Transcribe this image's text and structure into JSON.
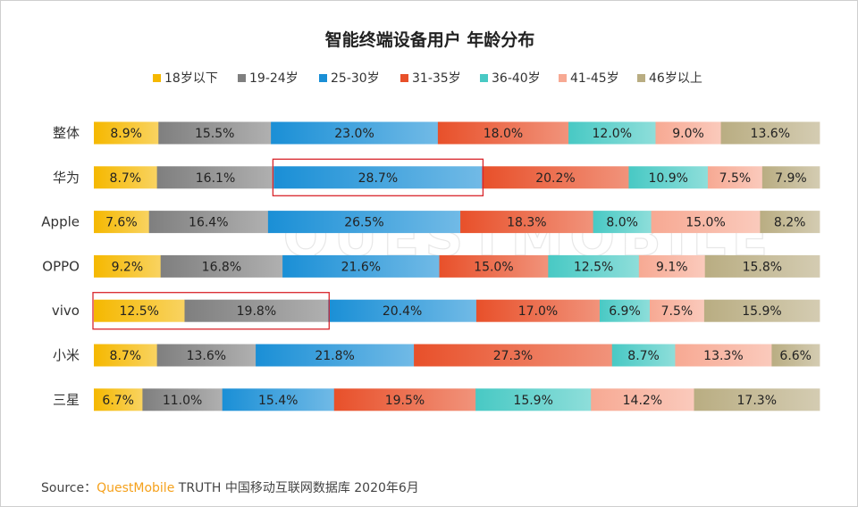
{
  "chart_data": {
    "type": "bar",
    "orientation": "horizontal",
    "stacked": true,
    "percent": true,
    "title": "智能终端设备用户 年龄分布",
    "legend_position": "top",
    "categories": [
      "整体",
      "华为",
      "Apple",
      "OPPO",
      "vivo",
      "小米",
      "三星"
    ],
    "series": [
      {
        "name": "18岁以下",
        "color": "#f5b800",
        "values": [
          8.9,
          8.7,
          7.6,
          9.2,
          12.5,
          8.7,
          6.7
        ]
      },
      {
        "name": "19-24岁",
        "color": "#7f7f7f",
        "values": [
          15.5,
          16.1,
          16.4,
          16.8,
          19.8,
          13.6,
          11.0
        ]
      },
      {
        "name": "25-30岁",
        "color": "#1a8fd6",
        "values": [
          23.0,
          28.7,
          26.5,
          21.6,
          20.4,
          21.8,
          15.4
        ]
      },
      {
        "name": "31-35岁",
        "color": "#e8502a",
        "values": [
          18.0,
          20.2,
          18.3,
          15.0,
          17.0,
          27.3,
          19.5
        ]
      },
      {
        "name": "36-40岁",
        "color": "#48c9c4",
        "values": [
          12.0,
          10.9,
          8.0,
          12.5,
          6.9,
          8.7,
          15.9
        ]
      },
      {
        "name": "41-45岁",
        "color": "#f7a993",
        "values": [
          9.0,
          7.5,
          15.0,
          9.1,
          7.5,
          13.3,
          14.2
        ]
      },
      {
        "name": "46岁以上",
        "color": "#b9ad82",
        "values": [
          13.6,
          7.9,
          8.2,
          15.8,
          15.9,
          6.6,
          17.3
        ]
      }
    ],
    "value_labels": [
      [
        "8.9%",
        "15.5%",
        "23.0%",
        "18.0%",
        "12.0%",
        "9.0%",
        "13.6%"
      ],
      [
        "8.7%",
        "16.1%",
        "28.7%",
        "20.2%",
        "10.9%",
        "7.5%",
        "7.9%"
      ],
      [
        "7.6%",
        "16.4%",
        "26.5%",
        "18.3%",
        "8.0%",
        "15.0%",
        "8.2%"
      ],
      [
        "9.2%",
        "16.8%",
        "21.6%",
        "15.0%",
        "12.5%",
        "9.1%",
        "15.8%"
      ],
      [
        "12.5%",
        "19.8%",
        "20.4%",
        "17.0%",
        "6.9%",
        "7.5%",
        "15.9%"
      ],
      [
        "8.7%",
        "13.6%",
        "21.8%",
        "27.3%",
        "8.7%",
        "13.3%",
        "6.6%"
      ],
      [
        "6.7%",
        "11.0%",
        "15.4%",
        "19.5%",
        "15.9%",
        "14.2%",
        "17.3%"
      ]
    ],
    "highlights": [
      {
        "category": "华为",
        "series": [
          "25-30岁"
        ]
      },
      {
        "category": "vivo",
        "series": [
          "18岁以下",
          "19-24岁"
        ]
      }
    ],
    "highlight_color": "#d9262c"
  },
  "watermark": "QUESTMOBILE",
  "source": {
    "prefix": "Source：",
    "brand": "QuestMobile",
    "suffix": "TRUTH 中国移动互联网数据库 2020年6月"
  }
}
